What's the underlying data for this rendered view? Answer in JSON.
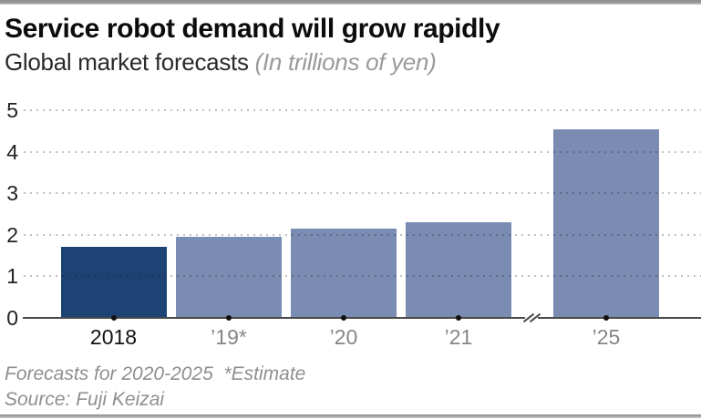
{
  "header": {
    "title": "Service robot demand will grow rapidly",
    "subtitle": "Global market forecasts",
    "subtitle_note": "(In trillions of yen)"
  },
  "chart_data": {
    "type": "bar",
    "title": "Service robot demand will grow rapidly",
    "subtitle": "Global market forecasts (In trillions of yen)",
    "categories": [
      "2018",
      "’19*",
      "’20",
      "’21",
      "’25"
    ],
    "values": [
      1.7,
      1.95,
      2.15,
      2.3,
      4.55
    ],
    "unit": "trillions of yen",
    "xlabel": "",
    "ylabel": "",
    "ylim": [
      0,
      5
    ],
    "yticks": [
      0,
      1,
      2,
      3,
      4,
      5
    ],
    "grid": "horizontal dotted",
    "legend": "none",
    "axis_break": {
      "present": true,
      "between": [
        "’21",
        "’25"
      ]
    },
    "highlight_category": "2018",
    "colors": {
      "highlight_bar": "#1c4373",
      "bar": "#7a8cb2",
      "grid_dot": "#bdbdbd",
      "axis": "#4a4a4a",
      "tick_dot": "#101010"
    }
  },
  "footer": {
    "note": "Forecasts for 2020-2025  *Estimate",
    "source": "Source: Fuji Keizai"
  }
}
